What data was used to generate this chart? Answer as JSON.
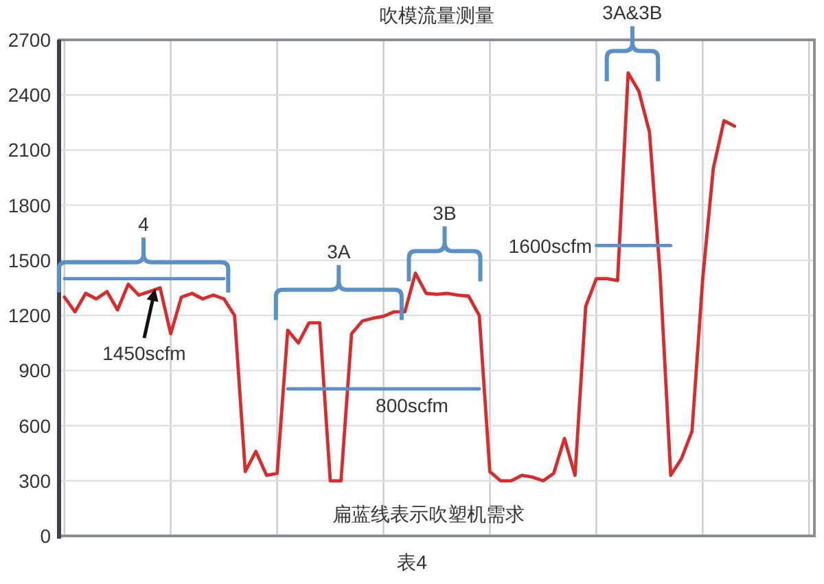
{
  "chart_data": {
    "type": "line",
    "title": "吹模流量测量",
    "categories": [
      null,
      null,
      null,
      null,
      null,
      null,
      null,
      null,
      null,
      null,
      null,
      null,
      null,
      null,
      null,
      null,
      null,
      null,
      null,
      null,
      null,
      null,
      null,
      null,
      null,
      null,
      null,
      null,
      null,
      null,
      null,
      null,
      null,
      null,
      null,
      null,
      null,
      null,
      null,
      null,
      null,
      null,
      null,
      null,
      null,
      null,
      null,
      null,
      null,
      null,
      null,
      null,
      null,
      null,
      null,
      null,
      null,
      null,
      null,
      null,
      null,
      null,
      null,
      null,
      null,
      null,
      null,
      null,
      null,
      null,
      null
    ],
    "ylim": [
      0,
      2700
    ],
    "yticks": [
      0,
      300,
      600,
      900,
      1200,
      1500,
      1800,
      2100,
      2400,
      2700
    ],
    "grid": true,
    "series": [
      {
        "color": "#d92b2b",
        "values": [
          1300,
          1220,
          1320,
          1290,
          1330,
          1230,
          1370,
          1310,
          1330,
          1350,
          1100,
          1300,
          1320,
          1290,
          1310,
          1290,
          1200,
          350,
          460,
          330,
          340,
          1120,
          1050,
          1160,
          1160,
          300,
          300,
          1100,
          1170,
          1185,
          1195,
          1220,
          1220,
          1430,
          1320,
          1315,
          1320,
          1310,
          1305,
          1200,
          350,
          300,
          300,
          330,
          320,
          300,
          340,
          530,
          330,
          1250,
          1400,
          1400,
          1390,
          2520,
          2420,
          2200,
          1420,
          330,
          420,
          570,
          1400,
          2000,
          2260,
          2230,
          null,
          null,
          null,
          null,
          null,
          null,
          null
        ]
      },
      {
        "color": "#5b8fc7",
        "values": [
          1400,
          1400,
          1400,
          1400,
          1400,
          1400,
          1400,
          1400,
          1400,
          1400,
          1400,
          1400,
          1400,
          1400,
          1400,
          1400,
          null,
          null,
          null,
          null,
          null,
          null,
          null,
          null,
          null,
          null,
          null,
          null,
          null,
          null,
          null,
          null,
          null,
          null,
          null,
          null,
          null,
          null,
          null,
          null,
          null,
          null,
          null,
          null,
          null,
          null,
          null,
          null,
          null,
          null,
          null,
          null,
          null,
          null,
          null,
          null,
          null,
          null,
          null,
          null,
          null,
          null,
          null,
          null,
          null,
          null,
          null,
          null,
          null,
          null,
          null
        ]
      },
      {
        "color": "#5b8fc7",
        "values": [
          null,
          null,
          null,
          null,
          null,
          null,
          null,
          null,
          null,
          null,
          null,
          null,
          null,
          null,
          null,
          null,
          null,
          null,
          null,
          null,
          null,
          800,
          800,
          800,
          800,
          800,
          800,
          800,
          800,
          800,
          800,
          800,
          800,
          800,
          800,
          800,
          800,
          800,
          800,
          800,
          null,
          null,
          null,
          null,
          null,
          null,
          null,
          null,
          null,
          null,
          null,
          null,
          null,
          null,
          null,
          null,
          null,
          null,
          null,
          null,
          null,
          null,
          null,
          null,
          null,
          null,
          null,
          null,
          null,
          null,
          null
        ]
      },
      {
        "color": "#5b8fc7",
        "values": [
          null,
          null,
          null,
          null,
          null,
          null,
          null,
          null,
          null,
          null,
          null,
          null,
          null,
          null,
          null,
          null,
          null,
          null,
          null,
          null,
          null,
          null,
          null,
          null,
          null,
          null,
          null,
          null,
          null,
          null,
          null,
          null,
          null,
          null,
          null,
          null,
          null,
          null,
          null,
          null,
          null,
          null,
          null,
          null,
          null,
          null,
          null,
          null,
          null,
          null,
          1580,
          1580,
          1580,
          1580,
          1580,
          1580,
          1580,
          1580,
          null,
          null,
          null,
          null,
          null,
          null,
          null,
          null,
          null,
          null,
          null,
          null,
          null
        ]
      }
    ],
    "annotations": [
      "4",
      "3A",
      "3B",
      "3A&3B",
      "1450scfm",
      "800scfm",
      "1600scfm",
      "扁蓝线表示吹塑机需求",
      "表4"
    ]
  }
}
